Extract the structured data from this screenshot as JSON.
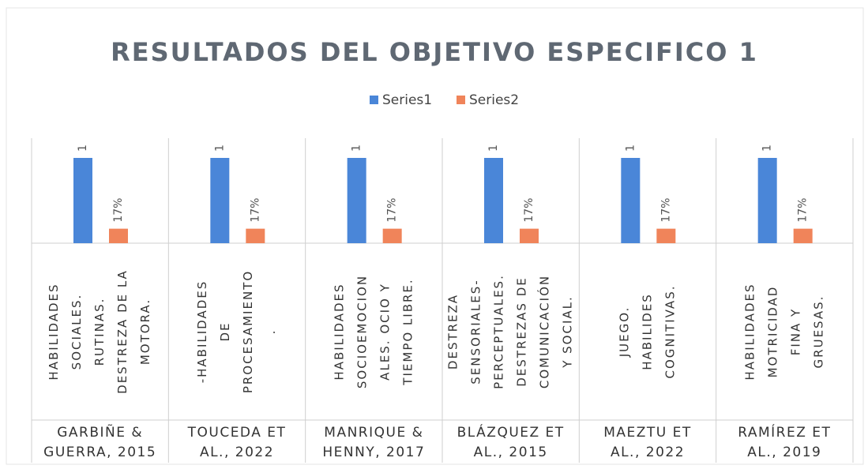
{
  "chart_data": {
    "type": "bar",
    "title": "RESULTADOS DEL OBJETIVO ESPECIFICO 1",
    "categories": [
      [
        "GARBIÑE &",
        "GUERRA, 2015"
      ],
      [
        "TOUCEDA ET",
        "AL., 2022"
      ],
      [
        "MANRIQUE &",
        "HENNY, 2017"
      ],
      [
        "BLÁZQUEZ ET",
        "AL., 2015"
      ],
      [
        "MAEZTU ET",
        "AL., 2022"
      ],
      [
        "RAMÍREZ ET",
        "AL., 2019"
      ]
    ],
    "subcategories": [
      [
        "HABILIDADES",
        "SOCIALES.",
        "RUTINAS.",
        "DESTREZA DE LA",
        "MOTORA."
      ],
      [
        "-HABILIDADES",
        "DE",
        "PROCESAMIENTO",
        "."
      ],
      [
        "HABILIDADES",
        "SOCIOEMOCION",
        "ALES.  OCIO Y",
        "TIEMPO LIBRE."
      ],
      [
        "DESTREZA",
        "SENSORIALES-",
        "PERCEPTUALES.",
        "DESTREZAS DE",
        "COMUNICACIÓN",
        "Y SOCIAL."
      ],
      [
        "JUEGO.",
        "HABILIDES",
        "COGNITIVAS."
      ],
      [
        "HABILIDADES",
        "MOTRICIDAD",
        "FINA Y",
        "GRUESAS."
      ]
    ],
    "series": [
      {
        "name": "Series1",
        "color": "#4a86d8",
        "values": [
          1,
          1,
          1,
          1,
          1,
          1
        ]
      },
      {
        "name": "Series2",
        "color": "#f0845a",
        "values": [
          0.17,
          0.17,
          0.17,
          0.17,
          0.17,
          0.17
        ],
        "value_labels": [
          "17%",
          "17%",
          "17%",
          "17%",
          "17%",
          "17%"
        ]
      }
    ],
    "legend": "top"
  }
}
